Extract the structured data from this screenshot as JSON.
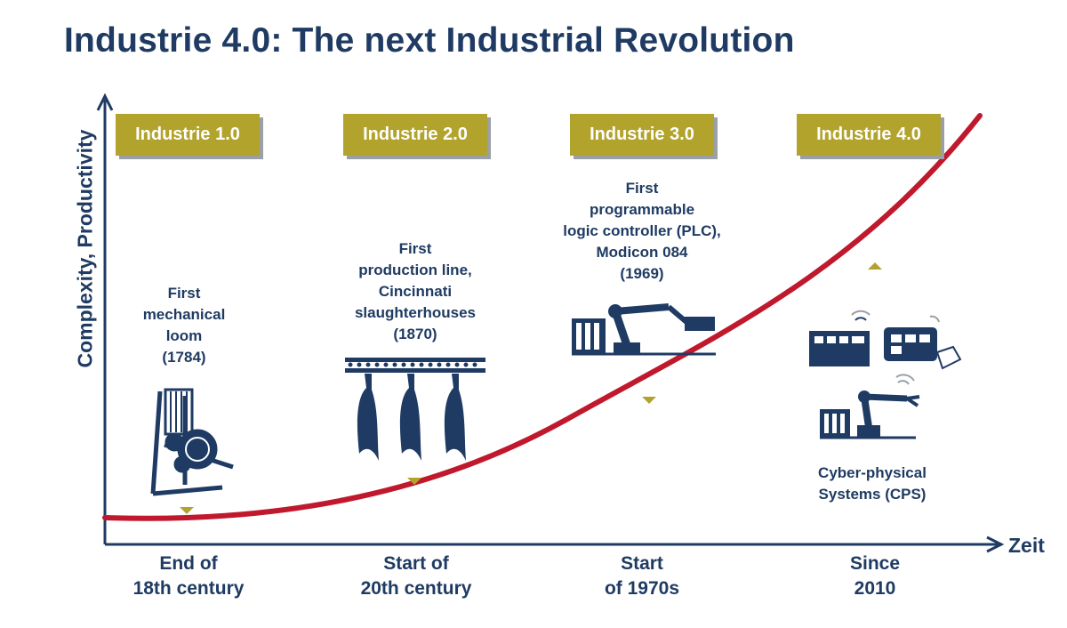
{
  "title": "Industrie 4.0: The next Industrial Revolution",
  "axes": {
    "y_label": "Complexity, Productivity",
    "x_label": "Zeit"
  },
  "colors": {
    "title": "#1f3b63",
    "era_box": "#b2a32d",
    "curve": "#c0182c",
    "marker": "#b2a32d",
    "icon": "#1f3b63"
  },
  "eras": [
    {
      "label": "Industrie 1.0",
      "milestone": [
        "First",
        "mechanical",
        "loom",
        "(1784)"
      ],
      "period": [
        "End of",
        "18th century"
      ]
    },
    {
      "label": "Industrie 2.0",
      "milestone": [
        "First",
        "production line,",
        "Cincinnati",
        "slaughterhouses",
        "(1870)"
      ],
      "period": [
        "Start of",
        "20th century"
      ]
    },
    {
      "label": "Industrie 3.0",
      "milestone": [
        "First",
        "programmable",
        "logic controller (PLC),",
        "Modicon 084",
        "(1969)"
      ],
      "period": [
        "Start",
        "of 1970s"
      ]
    },
    {
      "label": "Industrie 4.0",
      "milestone": [
        "Cyber-physical",
        "Systems (CPS)"
      ],
      "period": [
        "Since",
        "2010"
      ]
    }
  ]
}
